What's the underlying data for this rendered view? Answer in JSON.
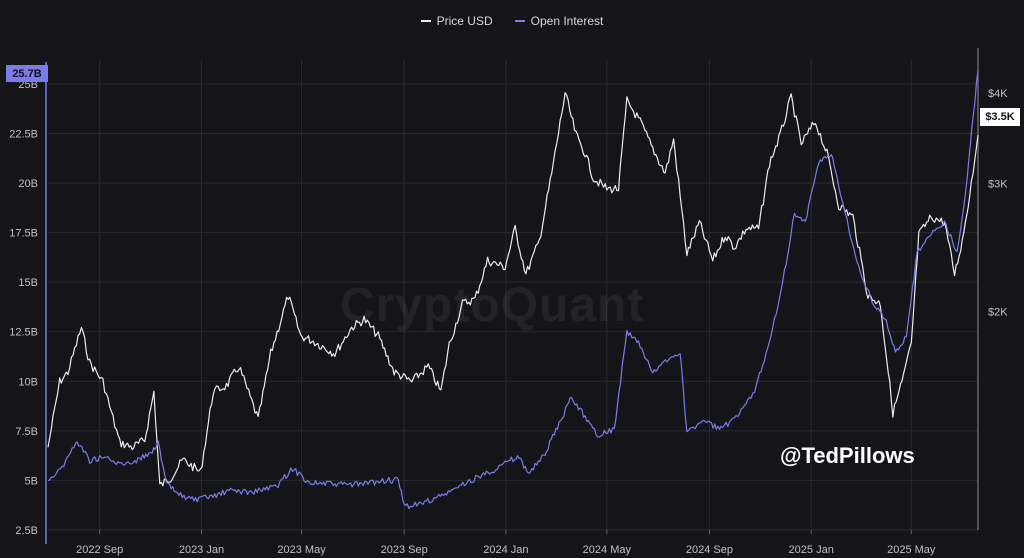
{
  "colors": {
    "price": "#ececf0",
    "oi": "#7b7bea",
    "grid": "#2a2a31"
  },
  "legend": [
    {
      "label": "Price USD",
      "color": "#ececf0"
    },
    {
      "label": "Open Interest",
      "color": "#7b7bea"
    }
  ],
  "watermark": "CryptoQuant",
  "handle": "@TedPillows",
  "badges": {
    "left": "25.7B",
    "right": "$3.5K"
  },
  "chart_data": {
    "type": "line",
    "title": "",
    "x_ticks": [
      "2022 Sep",
      "2023 Jan",
      "2023 May",
      "2023 Sep",
      "2024 Jan",
      "2024 May",
      "2024 Sep",
      "2025 Jan",
      "2025 May"
    ],
    "x_tick_dates": [
      "2022-09-01",
      "2023-01-01",
      "2023-05-01",
      "2023-09-01",
      "2024-01-01",
      "2024-05-01",
      "2024-09-01",
      "2025-01-01",
      "2025-05-01"
    ],
    "x_range": [
      "2022-07-01",
      "2025-07-20"
    ],
    "y_left": {
      "label": "",
      "range": [
        2.5,
        25.7
      ],
      "ticks": [
        2.5,
        5,
        7.5,
        10,
        12.5,
        15,
        17.5,
        20,
        22.5,
        25
      ],
      "tick_labels": [
        "2.5B",
        "5B",
        "7.5B",
        "10B",
        "12.5B",
        "15B",
        "17.5B",
        "20B",
        "22.5B",
        "25B"
      ]
    },
    "y_right": {
      "label": "",
      "scale": "log",
      "range": [
        1000,
        4300
      ],
      "ticks": [
        2000,
        3000,
        4000
      ],
      "tick_labels": [
        "$2K",
        "$3K",
        "$4K"
      ]
    },
    "grid": true,
    "legend_position": "top-center",
    "series": [
      {
        "name": "Price USD",
        "axis": "right",
        "points": [
          [
            "2022-07-01",
            1300
          ],
          [
            "2022-07-15",
            1600
          ],
          [
            "2022-07-25",
            1650
          ],
          [
            "2022-08-10",
            1900
          ],
          [
            "2022-08-20",
            1700
          ],
          [
            "2022-09-05",
            1600
          ],
          [
            "2022-09-15",
            1450
          ],
          [
            "2022-09-25",
            1320
          ],
          [
            "2022-10-10",
            1300
          ],
          [
            "2022-10-25",
            1330
          ],
          [
            "2022-11-05",
            1550
          ],
          [
            "2022-11-12",
            1150
          ],
          [
            "2022-11-25",
            1180
          ],
          [
            "2022-12-10",
            1250
          ],
          [
            "2022-12-31",
            1200
          ],
          [
            "2023-01-15",
            1550
          ],
          [
            "2023-01-31",
            1580
          ],
          [
            "2023-02-15",
            1680
          ],
          [
            "2023-03-10",
            1420
          ],
          [
            "2023-03-25",
            1750
          ],
          [
            "2023-04-15",
            2100
          ],
          [
            "2023-04-30",
            1850
          ],
          [
            "2023-05-15",
            1820
          ],
          [
            "2023-06-10",
            1750
          ],
          [
            "2023-06-30",
            1900
          ],
          [
            "2023-07-15",
            1950
          ],
          [
            "2023-08-01",
            1850
          ],
          [
            "2023-08-20",
            1650
          ],
          [
            "2023-09-10",
            1600
          ],
          [
            "2023-09-30",
            1680
          ],
          [
            "2023-10-15",
            1550
          ],
          [
            "2023-10-25",
            1800
          ],
          [
            "2023-11-10",
            2050
          ],
          [
            "2023-11-25",
            2080
          ],
          [
            "2023-12-10",
            2350
          ],
          [
            "2023-12-31",
            2300
          ],
          [
            "2024-01-12",
            2600
          ],
          [
            "2024-01-25",
            2250
          ],
          [
            "2024-02-10",
            2500
          ],
          [
            "2024-02-25",
            3100
          ],
          [
            "2024-03-12",
            4000
          ],
          [
            "2024-03-25",
            3500
          ],
          [
            "2024-04-05",
            3300
          ],
          [
            "2024-04-15",
            3050
          ],
          [
            "2024-05-01",
            2950
          ],
          [
            "2024-05-15",
            2950
          ],
          [
            "2024-05-25",
            3900
          ],
          [
            "2024-06-10",
            3650
          ],
          [
            "2024-06-25",
            3350
          ],
          [
            "2024-07-10",
            3100
          ],
          [
            "2024-07-20",
            3450
          ],
          [
            "2024-08-05",
            2400
          ],
          [
            "2024-08-20",
            2650
          ],
          [
            "2024-09-05",
            2350
          ],
          [
            "2024-09-20",
            2550
          ],
          [
            "2024-10-01",
            2450
          ],
          [
            "2024-10-15",
            2600
          ],
          [
            "2024-10-30",
            2600
          ],
          [
            "2024-11-12",
            3200
          ],
          [
            "2024-11-25",
            3500
          ],
          [
            "2024-12-08",
            3950
          ],
          [
            "2024-12-20",
            3400
          ],
          [
            "2025-01-06",
            3650
          ],
          [
            "2025-01-20",
            3300
          ],
          [
            "2025-02-03",
            2800
          ],
          [
            "2025-02-20",
            2700
          ],
          [
            "2025-03-10",
            2100
          ],
          [
            "2025-03-25",
            2050
          ],
          [
            "2025-04-09",
            1450
          ],
          [
            "2025-04-20",
            1600
          ],
          [
            "2025-05-01",
            1800
          ],
          [
            "2025-05-10",
            2550
          ],
          [
            "2025-05-25",
            2700
          ],
          [
            "2025-06-10",
            2650
          ],
          [
            "2025-06-22",
            2250
          ],
          [
            "2025-07-01",
            2500
          ],
          [
            "2025-07-10",
            2900
          ],
          [
            "2025-07-20",
            3500
          ]
        ]
      },
      {
        "name": "Open Interest",
        "axis": "left",
        "points": [
          [
            "2022-07-01",
            5.0
          ],
          [
            "2022-07-20",
            5.8
          ],
          [
            "2022-08-05",
            7.0
          ],
          [
            "2022-08-20",
            6.0
          ],
          [
            "2022-09-05",
            6.2
          ],
          [
            "2022-09-25",
            5.8
          ],
          [
            "2022-10-15",
            6.0
          ],
          [
            "2022-11-01",
            6.4
          ],
          [
            "2022-11-10",
            6.9
          ],
          [
            "2022-11-20",
            4.8
          ],
          [
            "2022-12-05",
            4.3
          ],
          [
            "2022-12-25",
            4.0
          ],
          [
            "2023-01-15",
            4.2
          ],
          [
            "2023-02-05",
            4.5
          ],
          [
            "2023-03-01",
            4.4
          ],
          [
            "2023-04-01",
            4.7
          ],
          [
            "2023-04-20",
            5.6
          ],
          [
            "2023-05-10",
            4.9
          ],
          [
            "2023-06-10",
            4.8
          ],
          [
            "2023-07-10",
            4.8
          ],
          [
            "2023-08-10",
            5.0
          ],
          [
            "2023-08-25",
            5.0
          ],
          [
            "2023-09-01",
            3.7
          ],
          [
            "2023-09-20",
            3.8
          ],
          [
            "2023-10-20",
            4.3
          ],
          [
            "2023-11-20",
            5.0
          ],
          [
            "2023-12-20",
            5.6
          ],
          [
            "2024-01-15",
            6.2
          ],
          [
            "2024-01-28",
            5.4
          ],
          [
            "2024-02-15",
            6.2
          ],
          [
            "2024-03-01",
            7.5
          ],
          [
            "2024-03-20",
            9.2
          ],
          [
            "2024-04-05",
            8.2
          ],
          [
            "2024-04-20",
            7.3
          ],
          [
            "2024-05-10",
            7.6
          ],
          [
            "2024-05-25",
            12.5
          ],
          [
            "2024-06-10",
            11.8
          ],
          [
            "2024-06-25",
            10.4
          ],
          [
            "2024-07-10",
            11.0
          ],
          [
            "2024-07-28",
            11.5
          ],
          [
            "2024-08-05",
            7.4
          ],
          [
            "2024-08-25",
            8.0
          ],
          [
            "2024-09-15",
            7.6
          ],
          [
            "2024-10-05",
            8.2
          ],
          [
            "2024-10-25",
            9.5
          ],
          [
            "2024-11-12",
            12.0
          ],
          [
            "2024-11-28",
            15.0
          ],
          [
            "2024-12-12",
            18.5
          ],
          [
            "2024-12-25",
            18.0
          ],
          [
            "2025-01-10",
            21.0
          ],
          [
            "2025-01-25",
            21.5
          ],
          [
            "2025-02-05",
            19.5
          ],
          [
            "2025-02-25",
            16.0
          ],
          [
            "2025-03-15",
            14.0
          ],
          [
            "2025-04-01",
            13.0
          ],
          [
            "2025-04-12",
            11.5
          ],
          [
            "2025-04-25",
            12.2
          ],
          [
            "2025-05-08",
            16.5
          ],
          [
            "2025-05-25",
            17.5
          ],
          [
            "2025-06-10",
            18.0
          ],
          [
            "2025-06-25",
            16.5
          ],
          [
            "2025-07-05",
            19.5
          ],
          [
            "2025-07-20",
            25.7
          ]
        ]
      }
    ]
  }
}
